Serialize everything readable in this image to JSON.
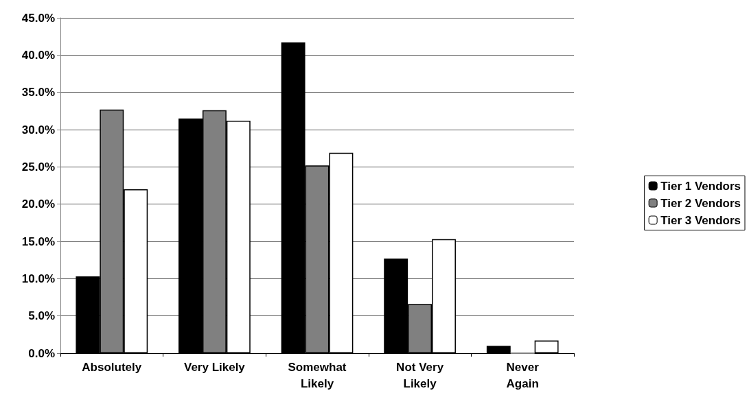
{
  "chart_data": {
    "type": "bar",
    "categories": [
      "Absolutely",
      "Very Likely",
      "Somewhat\nLikely",
      "Not Very\nLikely",
      "Never\nAgain"
    ],
    "series": [
      {
        "name": "Tier 1 Vendors",
        "color": "#000000",
        "values": [
          10.3,
          31.5,
          41.7,
          12.7,
          1.0
        ]
      },
      {
        "name": "Tier 2 Vendors",
        "color": "#808080",
        "values": [
          32.7,
          32.6,
          25.2,
          6.6,
          0
        ]
      },
      {
        "name": "Tier 3 Vendors",
        "color": "#ffffff",
        "values": [
          22.0,
          31.2,
          26.9,
          15.3,
          1.7
        ]
      }
    ],
    "ylim": [
      0,
      45
    ],
    "yticks": [
      {
        "value": 0,
        "label": "0.0%"
      },
      {
        "value": 5,
        "label": "5.0%"
      },
      {
        "value": 10,
        "label": "10.0%"
      },
      {
        "value": 15,
        "label": "15.0%"
      },
      {
        "value": 20,
        "label": "20.0%"
      },
      {
        "value": 25,
        "label": "25.0%"
      },
      {
        "value": 30,
        "label": "30.0%"
      },
      {
        "value": 35,
        "label": "35.0%"
      },
      {
        "value": 40,
        "label": "40.0%"
      },
      {
        "value": 45,
        "label": "45.0%"
      }
    ],
    "grid": "y",
    "legend": "right"
  }
}
